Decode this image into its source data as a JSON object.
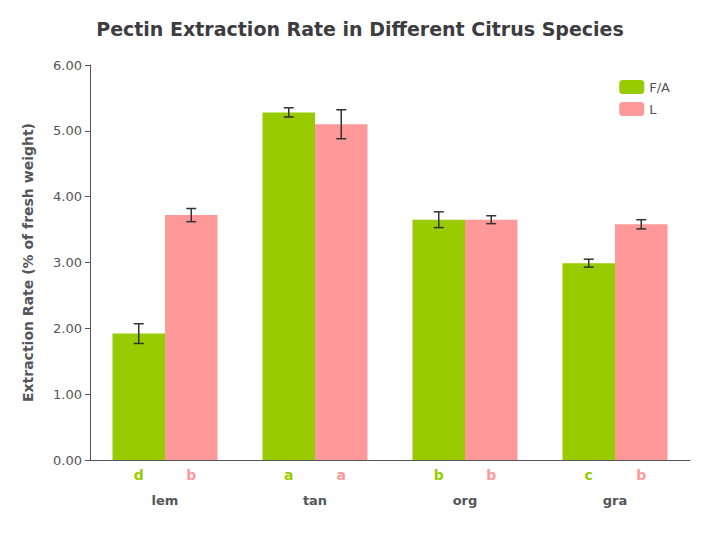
{
  "chart_data": {
    "type": "bar",
    "title": "Pectin Extraction Rate in Different Citrus Species",
    "ylabel": "Extraction Rate (% of fresh weight)",
    "categories": [
      "lem",
      "tan",
      "org",
      "gra"
    ],
    "series": [
      {
        "name": "F/A",
        "color": "#99CC00",
        "values": [
          1.92,
          5.28,
          3.65,
          2.99
        ],
        "errors": [
          0.15,
          0.07,
          0.12,
          0.06
        ],
        "stat_labels": [
          "d",
          "a",
          "b",
          "c"
        ]
      },
      {
        "name": "L",
        "color": "#FF9999",
        "values": [
          3.72,
          5.1,
          3.65,
          3.58
        ],
        "errors": [
          0.1,
          0.22,
          0.06,
          0.07
        ],
        "stat_labels": [
          "b",
          "a",
          "b",
          "b"
        ]
      }
    ],
    "ylim": [
      0,
      6.0
    ],
    "yticks": [
      {
        "value": 0.0,
        "label": "0.00"
      },
      {
        "value": 1.0,
        "label": "1.00"
      },
      {
        "value": 2.0,
        "label": "2.00"
      },
      {
        "value": 3.0,
        "label": "3.00"
      },
      {
        "value": 4.0,
        "label": "4.00"
      },
      {
        "value": 5.0,
        "label": "5.00"
      },
      {
        "value": 6.0,
        "label": "6.00"
      }
    ],
    "legend": "upper right",
    "grid": false
  }
}
